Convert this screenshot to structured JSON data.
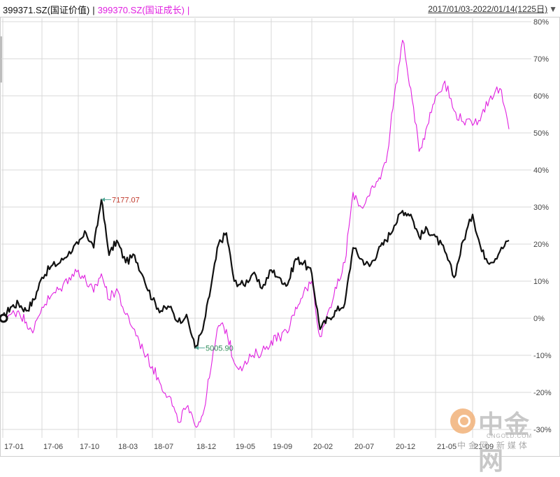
{
  "legend": {
    "series1_label": "399371.SZ(国证价值)",
    "series2_label": "399370.SZ(国证成长)",
    "separator": "|"
  },
  "date_range": "2017/01/03-2022/01/14(1225日)",
  "watermark": {
    "title": "中金网",
    "subtitle": "CNGOLD.COM",
    "tag": "中金网  新媒体"
  },
  "colors": {
    "series1": "#111111",
    "series2": "#e020e0",
    "grid": "#d8d8d8",
    "max_label": "#c0392b",
    "min_label": "#2e8b57"
  },
  "chart_data": {
    "type": "line",
    "x_tick_labels": [
      "17-01",
      "17-06",
      "17-10",
      "18-03",
      "18-07",
      "18-12",
      "19-05",
      "19-09",
      "20-02",
      "20-07",
      "20-12",
      "21-05",
      "21-09"
    ],
    "y_unit": "%",
    "ylim": [
      -30,
      80
    ],
    "y_ticks": [
      80,
      70,
      60,
      50,
      40,
      30,
      20,
      10,
      0,
      -10,
      -20,
      -30
    ],
    "y_tick_labels": [
      "80%",
      "70%",
      "60%",
      "50%",
      "40%",
      "30%",
      "20%",
      "10%",
      "0%",
      "-10%",
      "-20%",
      "-30%"
    ],
    "grid": true,
    "annotations": [
      {
        "text": "7177.07",
        "series": "399371.SZ(国证价值)",
        "kind": "max",
        "x": "2018-01",
        "y": 32
      },
      {
        "text": "5005.90",
        "series": "399371.SZ(国证价值)",
        "kind": "min",
        "x": "2018-12",
        "y": -8
      }
    ],
    "series": [
      {
        "name": "399371.SZ(国证价值)",
        "points": [
          [
            "2017-01",
            0
          ],
          [
            "2017-02",
            3
          ],
          [
            "2017-03",
            4
          ],
          [
            "2017-04",
            2
          ],
          [
            "2017-05",
            5
          ],
          [
            "2017-06",
            11
          ],
          [
            "2017-07",
            14
          ],
          [
            "2017-08",
            15
          ],
          [
            "2017-09",
            18
          ],
          [
            "2017-10",
            20
          ],
          [
            "2017-11",
            23
          ],
          [
            "2017-12",
            19
          ],
          [
            "2018-01",
            32
          ],
          [
            "2018-02",
            17
          ],
          [
            "2018-03",
            21
          ],
          [
            "2018-04",
            15
          ],
          [
            "2018-05",
            17
          ],
          [
            "2018-06",
            11
          ],
          [
            "2018-07",
            5
          ],
          [
            "2018-08",
            2
          ],
          [
            "2018-09",
            3
          ],
          [
            "2018-10",
            -1
          ],
          [
            "2018-11",
            1
          ],
          [
            "2018-12",
            -8
          ],
          [
            "2019-01",
            -3
          ],
          [
            "2019-02",
            8
          ],
          [
            "2019-03",
            20
          ],
          [
            "2019-04",
            23
          ],
          [
            "2019-05",
            10
          ],
          [
            "2019-06",
            9
          ],
          [
            "2019-07",
            12
          ],
          [
            "2019-08",
            8
          ],
          [
            "2019-09",
            13
          ],
          [
            "2019-10",
            11
          ],
          [
            "2019-11",
            9
          ],
          [
            "2019-12",
            16
          ],
          [
            "2020-01",
            15
          ],
          [
            "2020-02",
            12
          ],
          [
            "2020-03",
            -3
          ],
          [
            "2020-04",
            0
          ],
          [
            "2020-05",
            2
          ],
          [
            "2020-06",
            4
          ],
          [
            "2020-07",
            19
          ],
          [
            "2020-08",
            16
          ],
          [
            "2020-09",
            14
          ],
          [
            "2020-10",
            18
          ],
          [
            "2020-11",
            21
          ],
          [
            "2020-12",
            25
          ],
          [
            "2021-01",
            29
          ],
          [
            "2021-02",
            28
          ],
          [
            "2021-03",
            22
          ],
          [
            "2021-04",
            24
          ],
          [
            "2021-05",
            22
          ],
          [
            "2021-06",
            18
          ],
          [
            "2021-07",
            11
          ],
          [
            "2021-08",
            21
          ],
          [
            "2021-09",
            28
          ],
          [
            "2021-10",
            18
          ],
          [
            "2021-11",
            15
          ],
          [
            "2021-12",
            18
          ],
          [
            "2022-01",
            21
          ]
        ]
      },
      {
        "name": "399370.SZ(国证成长)",
        "points": [
          [
            "2017-01",
            0
          ],
          [
            "2017-02",
            1
          ],
          [
            "2017-03",
            2
          ],
          [
            "2017-04",
            -1
          ],
          [
            "2017-05",
            -3
          ],
          [
            "2017-06",
            3
          ],
          [
            "2017-07",
            6
          ],
          [
            "2017-08",
            8
          ],
          [
            "2017-09",
            11
          ],
          [
            "2017-10",
            13
          ],
          [
            "2017-11",
            10
          ],
          [
            "2017-12",
            7
          ],
          [
            "2018-01",
            12
          ],
          [
            "2018-02",
            5
          ],
          [
            "2018-03",
            8
          ],
          [
            "2018-04",
            1
          ],
          [
            "2018-05",
            -3
          ],
          [
            "2018-06",
            -9
          ],
          [
            "2018-07",
            -13
          ],
          [
            "2018-08",
            -18
          ],
          [
            "2018-09",
            -21
          ],
          [
            "2018-10",
            -28
          ],
          [
            "2018-11",
            -24
          ],
          [
            "2018-12",
            -29
          ],
          [
            "2019-01",
            -26
          ],
          [
            "2019-02",
            -14
          ],
          [
            "2019-03",
            -2
          ],
          [
            "2019-04",
            -3
          ],
          [
            "2019-05",
            -12
          ],
          [
            "2019-06",
            -13
          ],
          [
            "2019-07",
            -10
          ],
          [
            "2019-08",
            -9
          ],
          [
            "2019-09",
            -6
          ],
          [
            "2019-10",
            -5
          ],
          [
            "2019-11",
            -4
          ],
          [
            "2019-12",
            3
          ],
          [
            "2020-01",
            7
          ],
          [
            "2020-02",
            10
          ],
          [
            "2020-03",
            -5
          ],
          [
            "2020-04",
            2
          ],
          [
            "2020-05",
            8
          ],
          [
            "2020-06",
            15
          ],
          [
            "2020-07",
            34
          ],
          [
            "2020-08",
            30
          ],
          [
            "2020-09",
            33
          ],
          [
            "2020-10",
            37
          ],
          [
            "2020-11",
            42
          ],
          [
            "2020-12",
            60
          ],
          [
            "2021-01",
            75
          ],
          [
            "2021-02",
            62
          ],
          [
            "2021-03",
            45
          ],
          [
            "2021-04",
            52
          ],
          [
            "2021-05",
            60
          ],
          [
            "2021-06",
            64
          ],
          [
            "2021-07",
            56
          ],
          [
            "2021-08",
            53
          ],
          [
            "2021-09",
            52
          ],
          [
            "2021-10",
            55
          ],
          [
            "2021-11",
            60
          ],
          [
            "2021-12",
            62
          ],
          [
            "2022-01",
            51
          ]
        ]
      }
    ]
  }
}
